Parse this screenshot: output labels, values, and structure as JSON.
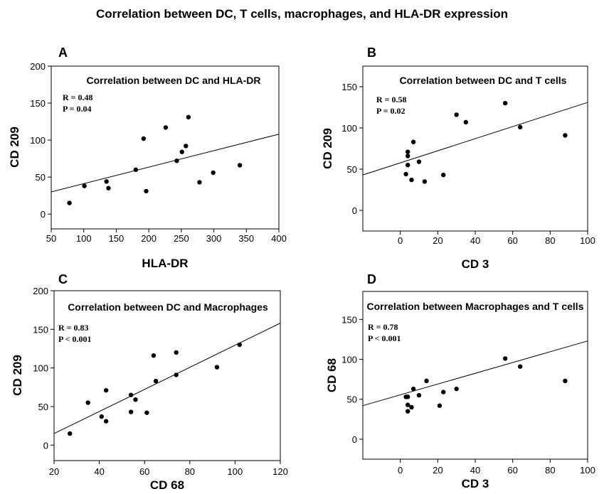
{
  "title": "Correlation between DC, T cells, macrophages, and HLA-DR expression",
  "chart_data": [
    {
      "type": "scatter",
      "panel": "A",
      "title": "Correlation between DC and HLA-DR",
      "xlabel": "HLA-DR",
      "ylabel": "CD 209",
      "xlim": [
        50,
        400
      ],
      "ylim": [
        -20,
        200
      ],
      "xticks": [
        "50",
        "100",
        "150",
        "200",
        "250",
        "300",
        "350",
        "400"
      ],
      "yticks": [
        "0",
        "50",
        "100",
        "150",
        "200"
      ],
      "stats": [
        "R = 0.48",
        "P = 0.04"
      ],
      "trendline": {
        "x": [
          50,
          400
        ],
        "y": [
          30,
          108
        ]
      },
      "points": [
        {
          "x": 78,
          "y": 15
        },
        {
          "x": 101,
          "y": 38
        },
        {
          "x": 135,
          "y": 44
        },
        {
          "x": 138,
          "y": 35
        },
        {
          "x": 180,
          "y": 60
        },
        {
          "x": 192,
          "y": 102
        },
        {
          "x": 196,
          "y": 31
        },
        {
          "x": 226,
          "y": 117
        },
        {
          "x": 243,
          "y": 72
        },
        {
          "x": 251,
          "y": 84
        },
        {
          "x": 257,
          "y": 92
        },
        {
          "x": 261,
          "y": 131
        },
        {
          "x": 278,
          "y": 43
        },
        {
          "x": 299,
          "y": 56
        },
        {
          "x": 340,
          "y": 66
        }
      ]
    },
    {
      "type": "scatter",
      "panel": "B",
      "title": "Correlation between DC and T cells",
      "xlabel": "CD 3",
      "ylabel": "CD 209",
      "xlim": [
        -20,
        100
      ],
      "ylim": [
        -25,
        175
      ],
      "xticks": [
        "0",
        "20",
        "40",
        "60",
        "80",
        "100"
      ],
      "yticks": [
        "0",
        "50",
        "100",
        "150"
      ],
      "stats": [
        "R = 0.58",
        "P = 0.02"
      ],
      "trendline": {
        "x": [
          -20,
          100
        ],
        "y": [
          43,
          131
        ]
      },
      "points": [
        {
          "x": 3,
          "y": 44
        },
        {
          "x": 4,
          "y": 55
        },
        {
          "x": 4,
          "y": 66
        },
        {
          "x": 4,
          "y": 71
        },
        {
          "x": 6,
          "y": 37
        },
        {
          "x": 7,
          "y": 83
        },
        {
          "x": 10,
          "y": 59
        },
        {
          "x": 13,
          "y": 35
        },
        {
          "x": 23,
          "y": 43
        },
        {
          "x": 30,
          "y": 116
        },
        {
          "x": 35,
          "y": 107
        },
        {
          "x": 56,
          "y": 130
        },
        {
          "x": 64,
          "y": 101
        },
        {
          "x": 88,
          "y": 91
        }
      ]
    },
    {
      "type": "scatter",
      "panel": "C",
      "title": "Correlation between DC and Macrophages",
      "xlabel": "CD 68",
      "ylabel": "CD 209",
      "xlim": [
        20,
        120
      ],
      "ylim": [
        -20,
        200
      ],
      "xticks": [
        "20",
        "40",
        "60",
        "80",
        "100",
        "120"
      ],
      "yticks": [
        "0",
        "50",
        "100",
        "150",
        "200"
      ],
      "stats": [
        "R = 0.83",
        "P < 0.001"
      ],
      "trendline": {
        "x": [
          20,
          120
        ],
        "y": [
          15,
          158
        ]
      },
      "points": [
        {
          "x": 27,
          "y": 15
        },
        {
          "x": 35,
          "y": 55
        },
        {
          "x": 41,
          "y": 37
        },
        {
          "x": 43,
          "y": 71
        },
        {
          "x": 43,
          "y": 31
        },
        {
          "x": 54,
          "y": 65
        },
        {
          "x": 54,
          "y": 43
        },
        {
          "x": 56,
          "y": 59
        },
        {
          "x": 61,
          "y": 42
        },
        {
          "x": 64,
          "y": 116
        },
        {
          "x": 65,
          "y": 83
        },
        {
          "x": 74,
          "y": 120
        },
        {
          "x": 74,
          "y": 91
        },
        {
          "x": 92,
          "y": 101
        },
        {
          "x": 102,
          "y": 130
        }
      ]
    },
    {
      "type": "scatter",
      "panel": "D",
      "title": "Correlation between Macrophages and T cells",
      "xlabel": "CD 3",
      "ylabel": "CD 68",
      "xlim": [
        -20,
        100
      ],
      "ylim": [
        -25,
        185
      ],
      "xticks": [
        "0",
        "20",
        "40",
        "60",
        "80",
        "100"
      ],
      "yticks": [
        "0",
        "50",
        "100",
        "150"
      ],
      "stats": [
        "R = 0.78",
        "P < 0.001"
      ],
      "trendline": {
        "x": [
          -20,
          100
        ],
        "y": [
          42,
          123
        ]
      },
      "points": [
        {
          "x": 3,
          "y": 53
        },
        {
          "x": 4,
          "y": 53
        },
        {
          "x": 4,
          "y": 43
        },
        {
          "x": 4,
          "y": 35
        },
        {
          "x": 6,
          "y": 40
        },
        {
          "x": 7,
          "y": 63
        },
        {
          "x": 10,
          "y": 55
        },
        {
          "x": 14,
          "y": 73
        },
        {
          "x": 21,
          "y": 42
        },
        {
          "x": 23,
          "y": 59
        },
        {
          "x": 30,
          "y": 63
        },
        {
          "x": 56,
          "y": 101
        },
        {
          "x": 64,
          "y": 91
        },
        {
          "x": 88,
          "y": 73
        }
      ]
    }
  ]
}
